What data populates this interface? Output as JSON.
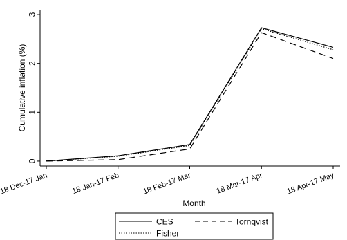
{
  "chart_data": {
    "type": "line",
    "categories": [
      "18 Dec-17 Jan",
      "18 Jan-17 Feb",
      "18 Feb-17 Mar",
      "18 Mar-17 Apr",
      "18 Apr-17 May"
    ],
    "series": [
      {
        "name": "CES",
        "values": [
          0,
          0.11,
          0.34,
          2.73,
          2.33
        ],
        "style": "solid"
      },
      {
        "name": "Fisher",
        "values": [
          0,
          0.1,
          0.32,
          2.71,
          2.28
        ],
        "style": "dotted"
      },
      {
        "name": "Tornqvist",
        "values": [
          0,
          0.03,
          0.25,
          2.63,
          2.1
        ],
        "style": "dashed"
      }
    ],
    "xlabel": "Month",
    "ylabel": "Cumulative inflation (%)",
    "ylim": [
      -0.1,
      3.1
    ],
    "yticks": [
      0,
      1,
      2,
      3
    ],
    "grid": false,
    "legend_position": "bottom-center",
    "line_color": "#000000"
  }
}
